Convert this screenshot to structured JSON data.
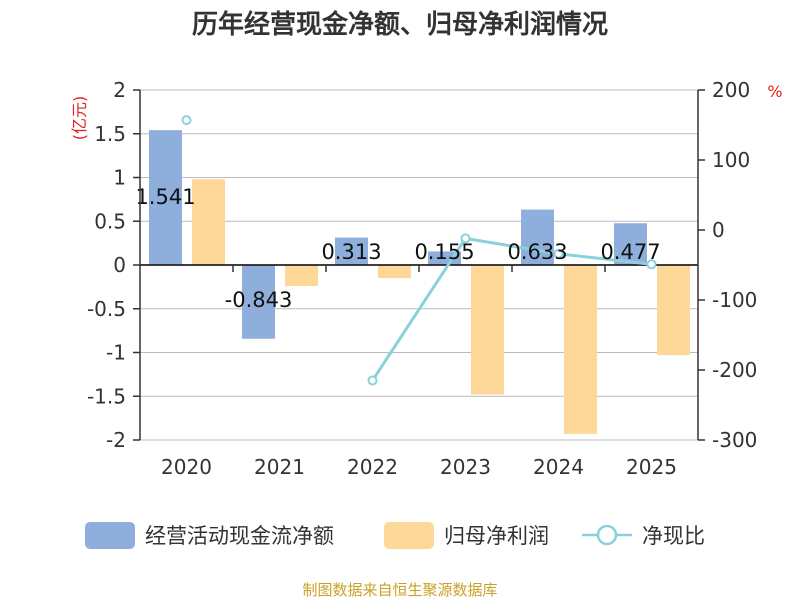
{
  "chart_data": {
    "type": "bar-line",
    "title": "历年经营现金净额、归母净利润情况",
    "categories": [
      "2020",
      "2021",
      "2022",
      "2023",
      "2024",
      "2025"
    ],
    "left_axis": {
      "unit": "(亿元)",
      "ylim": [
        -2,
        2
      ],
      "ticks": [
        "2",
        "1.5",
        "1",
        "0.5",
        "0",
        "-0.5",
        "-1",
        "-1.5",
        "-2"
      ]
    },
    "right_axis": {
      "unit": "%",
      "ylim": [
        -300,
        200
      ],
      "ticks": [
        "200",
        "100",
        "0",
        "-100",
        "-200",
        "-300"
      ]
    },
    "series": [
      {
        "name": "经营活动现金流净额",
        "type": "bar",
        "axis": "left",
        "color": "#8eaedb",
        "values": [
          1.541,
          -0.843,
          0.313,
          0.155,
          0.633,
          0.477
        ],
        "labels": [
          "1.541",
          "-0.843",
          "0.313",
          "0.155",
          "0.633",
          "0.477"
        ]
      },
      {
        "name": "归母净利润",
        "type": "bar",
        "axis": "left",
        "color": "#fed898",
        "values": [
          0.98,
          -0.24,
          -0.15,
          -1.48,
          -1.93,
          -1.03
        ]
      },
      {
        "name": "净现比",
        "type": "line",
        "axis": "right",
        "color": "#8ad1dc",
        "values": [
          157,
          null,
          -215,
          -12,
          -34,
          -49
        ]
      }
    ]
  },
  "source": "制图数据来自恒生聚源数据库"
}
